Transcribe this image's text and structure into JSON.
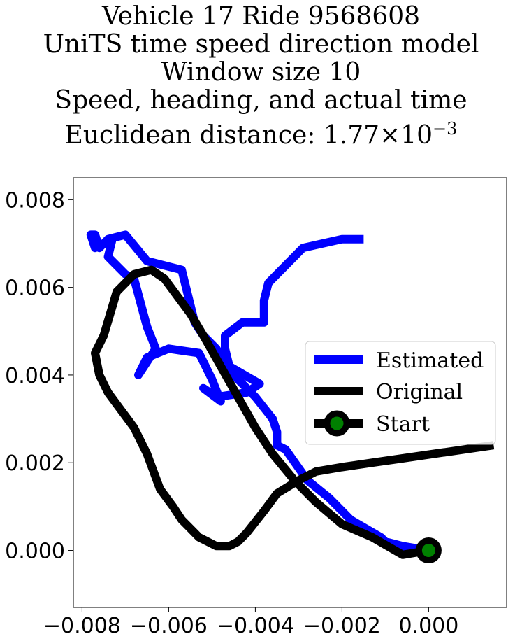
{
  "chart_data": {
    "type": "line",
    "title_lines": [
      "Vehicle 17 Ride 9568608",
      "UniTS time speed direction model",
      "Window size 10",
      "Speed, heading, and actual time"
    ],
    "title_last_line": {
      "prefix": "Euclidean distance: ",
      "mantissa": "1.77",
      "times": "×",
      "base": "10",
      "exponent": "−3"
    },
    "xlabel": "",
    "ylabel": "",
    "xlim": [
      -0.0082,
      0.0018
    ],
    "ylim": [
      -0.0013,
      0.0085
    ],
    "xticks": [
      -0.008,
      -0.006,
      -0.004,
      -0.002,
      0.0
    ],
    "xtick_labels": [
      "−0.008",
      "−0.006",
      "−0.004",
      "−0.002",
      "0.000"
    ],
    "yticks": [
      0.0,
      0.002,
      0.004,
      0.006,
      0.008
    ],
    "ytick_labels": [
      "0.000",
      "0.002",
      "0.004",
      "0.006",
      "0.008"
    ],
    "grid": false,
    "legend_position": "center-right",
    "series": [
      {
        "name": "Estimated",
        "color": "#0000ff",
        "x": [
          -0.0015,
          -0.002,
          -0.0029,
          -0.0035,
          -0.0037,
          -0.0038,
          -0.0038,
          -0.0043,
          -0.0047,
          -0.0047,
          -0.0046,
          -0.0039,
          -0.0042,
          -0.0049,
          -0.0052,
          -0.0048,
          -0.005,
          -0.0053,
          -0.006,
          -0.0065,
          -0.0067,
          -0.0063,
          -0.0065,
          -0.0068,
          -0.007,
          -0.0074,
          -0.0073,
          -0.0077,
          -0.0078,
          -0.0077,
          -0.0076,
          -0.0074,
          -0.007,
          -0.0065,
          -0.0057,
          -0.0054,
          -0.0052,
          -0.0049,
          -0.0046,
          -0.004,
          -0.0036,
          -0.0035,
          -0.0035,
          -0.0033,
          -0.0028,
          -0.0023,
          -0.0018,
          -0.0011,
          -0.001,
          -0.0006,
          0.0
        ],
        "y": [
          0.0071,
          0.0071,
          0.0069,
          0.0063,
          0.0061,
          0.0057,
          0.0052,
          0.0052,
          0.0049,
          0.0046,
          0.0042,
          0.0038,
          0.0036,
          0.0035,
          0.0037,
          0.0034,
          0.0039,
          0.0045,
          0.0046,
          0.0044,
          0.004,
          0.0046,
          0.0051,
          0.0062,
          0.0063,
          0.0067,
          0.0071,
          0.0069,
          0.0072,
          0.0072,
          0.0069,
          0.0071,
          0.0072,
          0.0066,
          0.0064,
          0.0052,
          0.0049,
          0.0046,
          0.0041,
          0.0035,
          0.003,
          0.0027,
          0.0024,
          0.0023,
          0.0016,
          0.0012,
          0.0007,
          0.0003,
          0.0002,
          0.0001,
          0.0
        ]
      },
      {
        "name": "Original",
        "color": "#000000",
        "x": [
          0.0,
          -0.0006,
          -0.0013,
          -0.002,
          -0.0026,
          -0.0031,
          -0.0036,
          -0.004,
          -0.0044,
          -0.0048,
          -0.0052,
          -0.0055,
          -0.0058,
          -0.0061,
          -0.0064,
          -0.0068,
          -0.0072,
          -0.0075,
          -0.0077,
          -0.0076,
          -0.0074,
          -0.0071,
          -0.0068,
          -0.0065,
          -0.0062,
          -0.0059,
          -0.0057,
          -0.0055,
          -0.0053,
          -0.0051,
          -0.0049,
          -0.0046,
          -0.0044,
          -0.0042,
          -0.0038,
          -0.0035,
          -0.003,
          -0.0026,
          -0.002,
          -0.0013,
          -0.0006,
          0.0015
        ],
        "y": [
          0.0,
          -0.0001,
          0.0003,
          0.0006,
          0.0011,
          0.0016,
          0.0022,
          0.0028,
          0.0035,
          0.0042,
          0.0049,
          0.0054,
          0.0058,
          0.0062,
          0.0064,
          0.0063,
          0.0059,
          0.0049,
          0.0045,
          0.004,
          0.0036,
          0.0032,
          0.0028,
          0.0022,
          0.0014,
          0.001,
          0.0007,
          0.0005,
          0.0003,
          0.0002,
          0.0001,
          0.0001,
          0.0002,
          0.0004,
          0.0009,
          0.0013,
          0.0016,
          0.0018,
          0.0019,
          0.002,
          0.0021,
          0.0024
        ]
      }
    ],
    "start_marker": {
      "name": "Start",
      "x": 0.0,
      "y": 0.0,
      "edge_color": "#000000",
      "face_color": "#008000"
    }
  }
}
